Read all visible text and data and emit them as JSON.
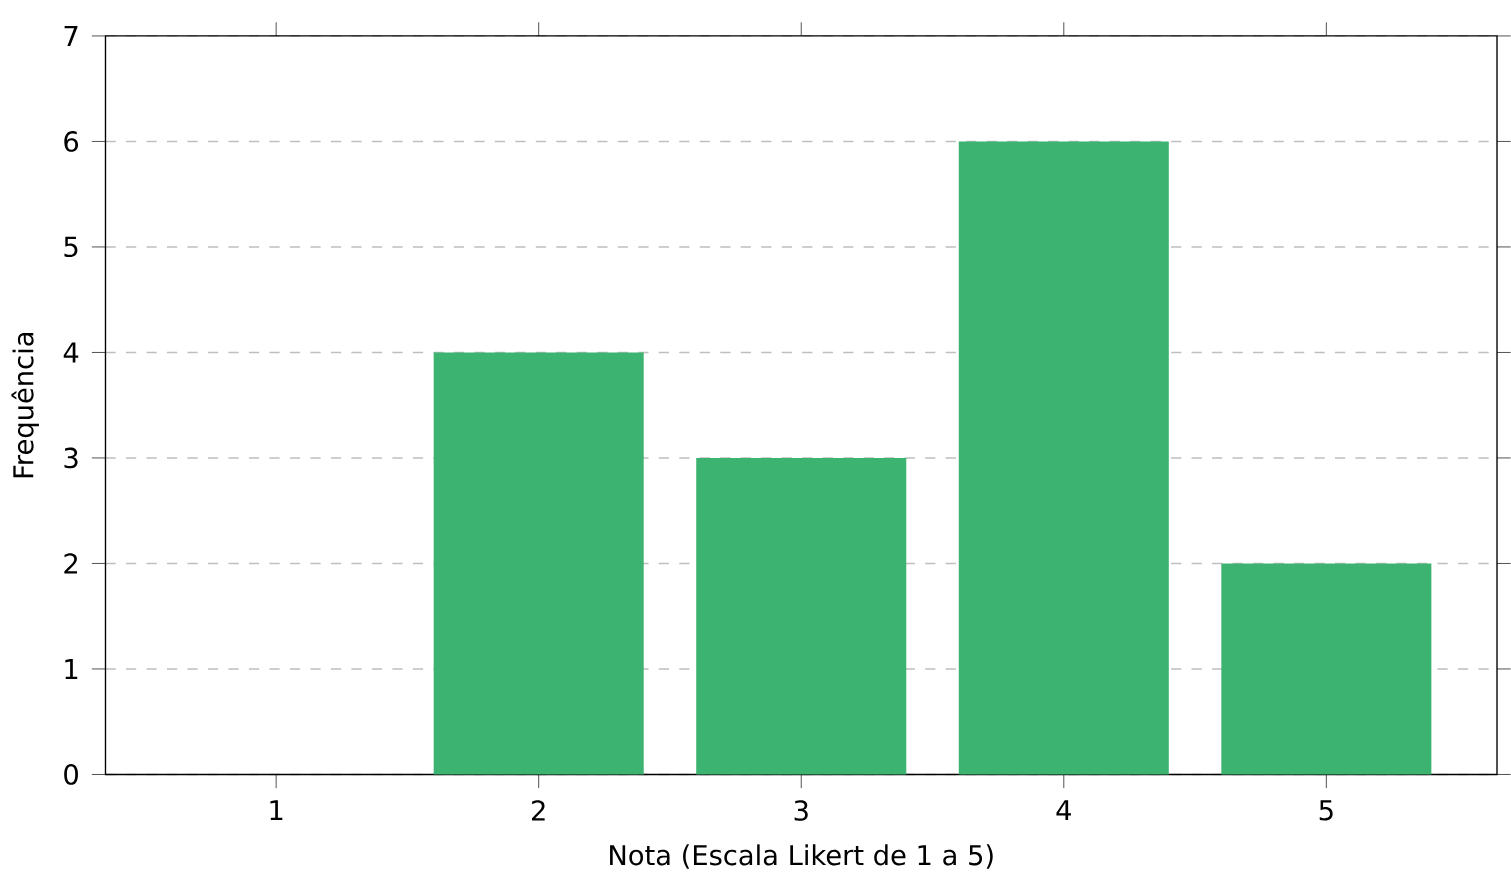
{
  "chart_data": {
    "type": "bar",
    "xlabel": "Nota (Escala Likert de 1 a 5)",
    "ylabel": "Frequência",
    "categories": [
      "1",
      "2",
      "3",
      "4",
      "5"
    ],
    "values": [
      0,
      4,
      3,
      6,
      2
    ],
    "color": "#3cb371",
    "ylim": [
      0,
      7
    ],
    "yticks": [
      0,
      1,
      2,
      3,
      4,
      5,
      6,
      7
    ],
    "grid": "y"
  }
}
